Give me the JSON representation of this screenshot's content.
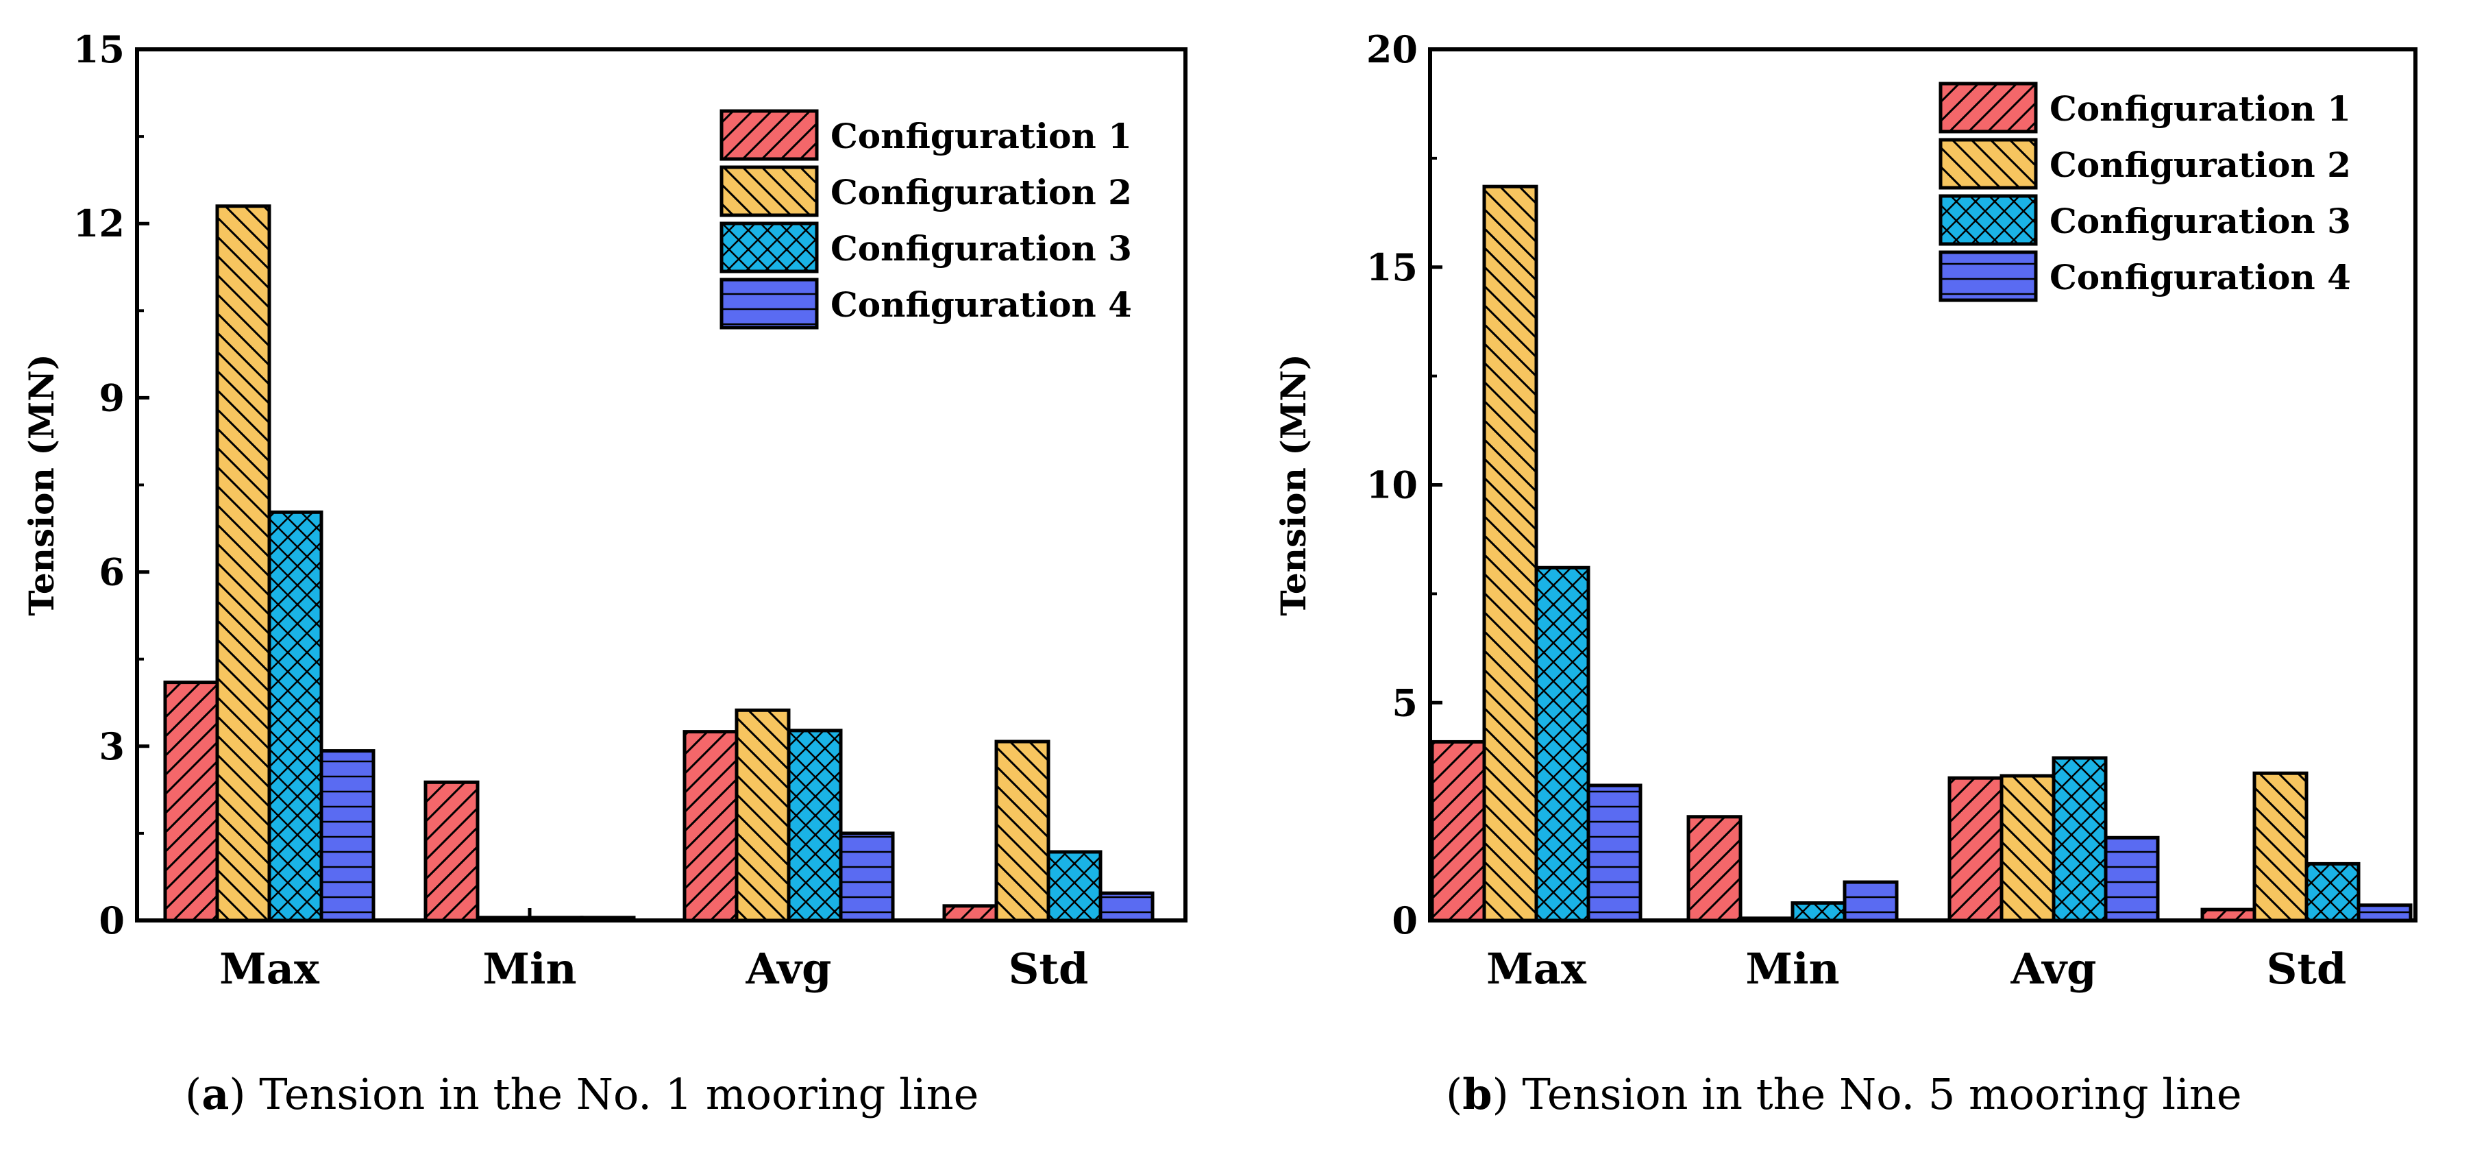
{
  "colors": {
    "config1": "#f4676a",
    "config2": "#f7c55f",
    "config3": "#1ab3e6",
    "config4": "#5a6bf2"
  },
  "chart_data": [
    {
      "type": "bar",
      "ylabel": "Tension (MN)",
      "ylim": [
        0,
        15
      ],
      "yticks": [
        0,
        3,
        6,
        9,
        12,
        15
      ],
      "categories": [
        "Max",
        "Min",
        "Avg",
        "Std"
      ],
      "series": [
        {
          "name": "Configuration 1",
          "values": [
            4.1,
            2.38,
            3.25,
            0.25
          ]
        },
        {
          "name": "Configuration 2",
          "values": [
            12.3,
            0.05,
            3.62,
            3.08
          ]
        },
        {
          "name": "Configuration 3",
          "values": [
            7.03,
            0.05,
            3.27,
            1.18
          ]
        },
        {
          "name": "Configuration 4",
          "values": [
            2.92,
            0.05,
            1.5,
            0.47
          ]
        }
      ],
      "legend": "top-right",
      "caption_letter": "a",
      "caption_text": "Tension in the No. 1 mooring line"
    },
    {
      "type": "bar",
      "ylabel": "Tension (MN)",
      "ylim": [
        0,
        20
      ],
      "yticks": [
        0,
        5,
        10,
        15,
        20
      ],
      "categories": [
        "Max",
        "Min",
        "Avg",
        "Std"
      ],
      "series": [
        {
          "name": "Configuration 1",
          "values": [
            4.1,
            2.38,
            3.27,
            0.25
          ]
        },
        {
          "name": "Configuration 2",
          "values": [
            16.85,
            0.05,
            3.32,
            3.38
          ]
        },
        {
          "name": "Configuration 3",
          "values": [
            8.1,
            0.4,
            3.73,
            1.3
          ]
        },
        {
          "name": "Configuration 4",
          "values": [
            3.1,
            0.88,
            1.9,
            0.35
          ]
        }
      ],
      "legend": "top-right",
      "caption_letter": "b",
      "caption_text": "Tension in the No. 5 mooring line"
    }
  ]
}
